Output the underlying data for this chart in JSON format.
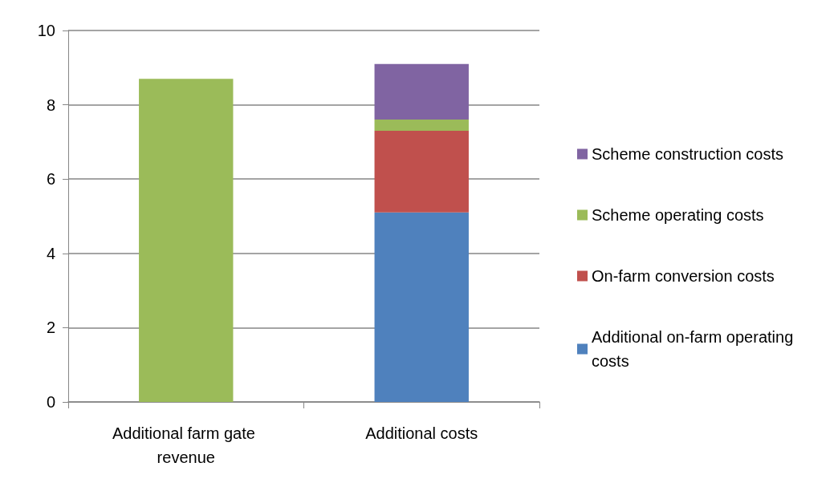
{
  "chart_data": {
    "type": "bar",
    "stacked": true,
    "categories": [
      "Additional farm gate revenue",
      "Additional costs"
    ],
    "series": [
      {
        "color": "#9bbb59",
        "values": [
          8.7,
          null
        ]
      },
      {
        "name": "Additional on-farm operating costs",
        "color": "#4f81bd",
        "values": [
          null,
          5.1
        ]
      },
      {
        "name": "On-farm conversion costs",
        "color": "#c0504d",
        "values": [
          null,
          2.2
        ]
      },
      {
        "name": "Scheme operating costs",
        "color": "#9bbb59",
        "values": [
          null,
          0.3
        ]
      },
      {
        "name": "Scheme construction costs",
        "color": "#8064a2",
        "values": [
          null,
          1.5
        ]
      }
    ],
    "ylim": [
      0,
      10
    ],
    "yticks": [
      0,
      2,
      4,
      6,
      8,
      10
    ],
    "grid": "y",
    "legend": "right"
  }
}
